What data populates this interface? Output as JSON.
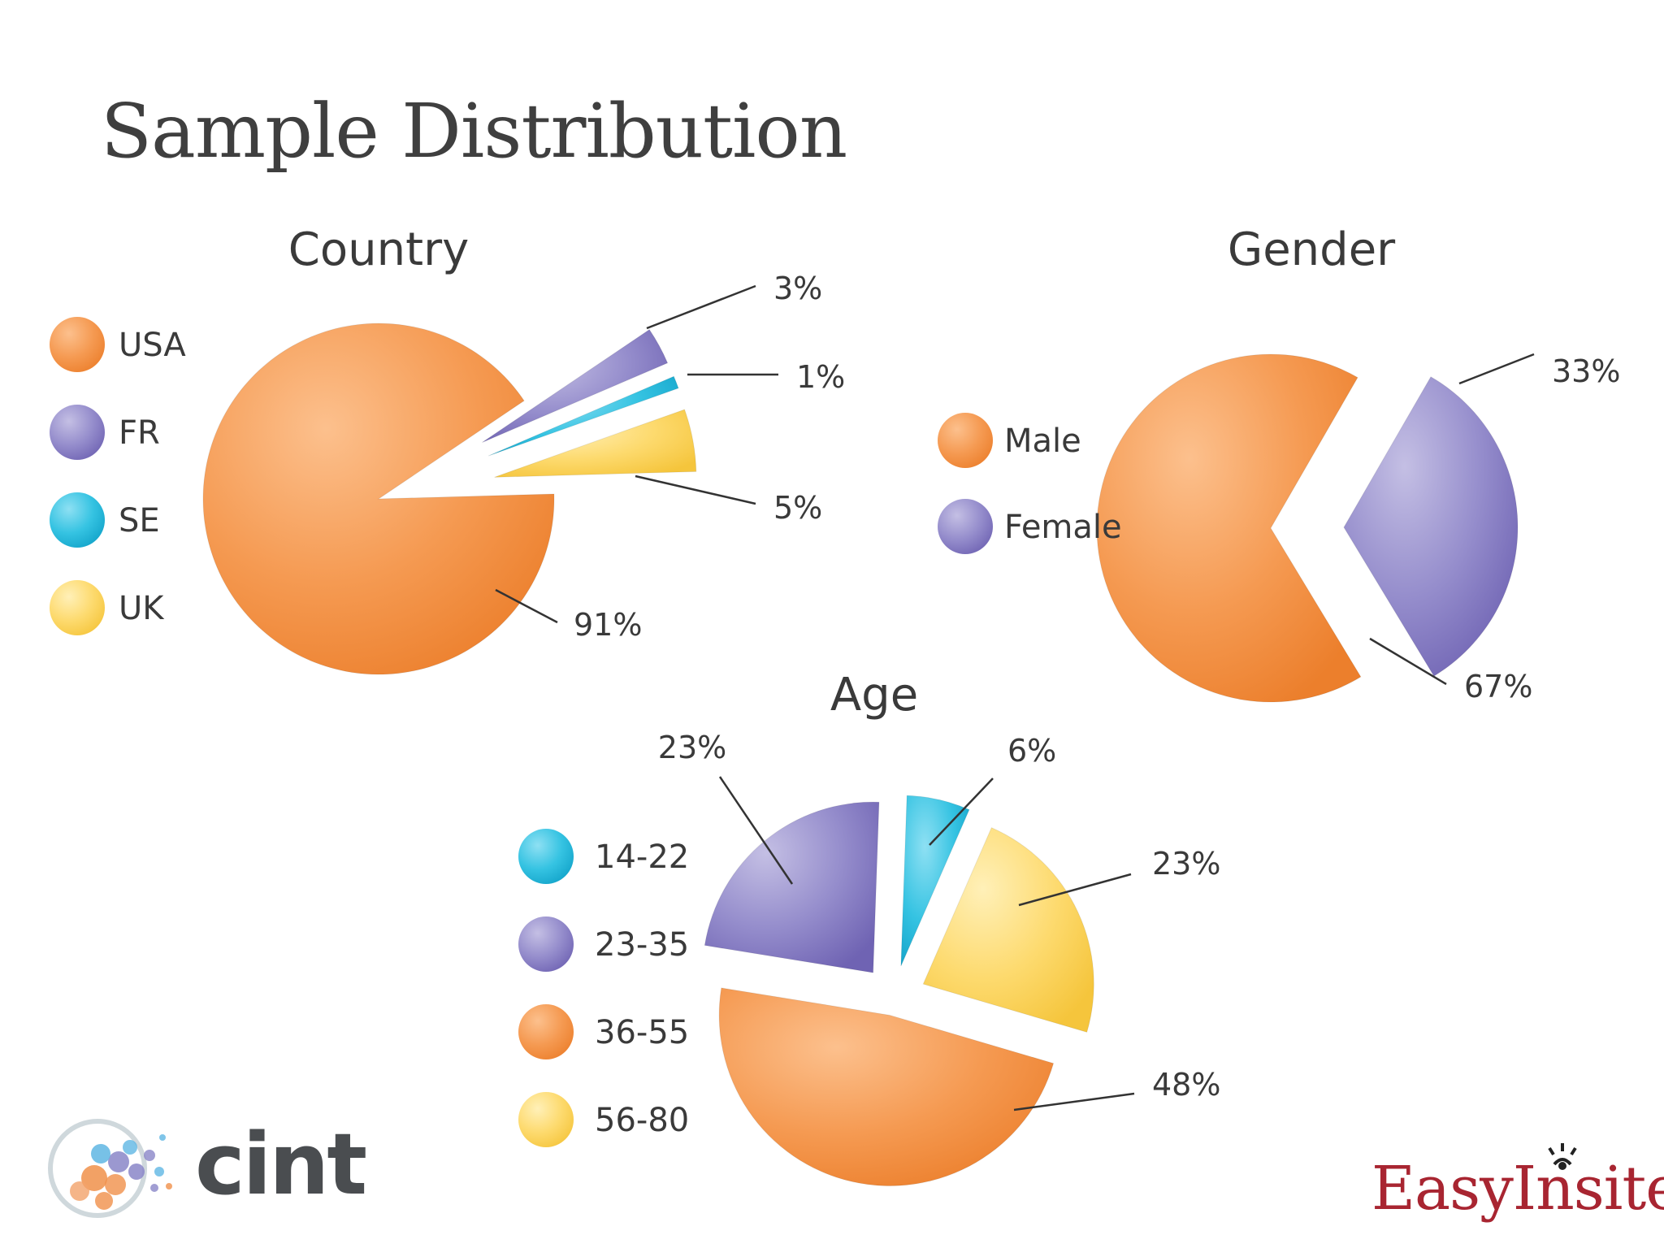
{
  "slide": {
    "title": "Sample Distribution",
    "logo_left": "cint",
    "logo_right": "EasyInsites"
  },
  "colors": {
    "orange": "#f59a52",
    "purple": "#8f86c8",
    "cyan": "#2dbfe0",
    "yellow": "#fdd868",
    "title_text": "#3f3f3f",
    "easyinsites_red": "#a82531"
  },
  "chart_data": [
    {
      "type": "pie",
      "title": "Country",
      "categories": [
        "USA",
        "FR",
        "SE",
        "UK"
      ],
      "values": [
        91,
        3,
        1,
        5
      ],
      "labels": [
        "91%",
        "3%",
        "1%",
        "5%"
      ],
      "colors": [
        "#f59a52",
        "#8f86c8",
        "#2dbfe0",
        "#fdd868"
      ],
      "legend": "left",
      "exploded": [
        "FR",
        "SE",
        "UK"
      ]
    },
    {
      "type": "pie",
      "title": "Gender",
      "categories": [
        "Male",
        "Female"
      ],
      "values": [
        67,
        33
      ],
      "labels": [
        "67%",
        "33%"
      ],
      "colors": [
        "#f59a52",
        "#8f86c8"
      ],
      "legend": "left",
      "exploded": [
        "Female"
      ]
    },
    {
      "type": "pie",
      "title": "Age",
      "categories": [
        "14-22",
        "23-35",
        "36-55",
        "56-80"
      ],
      "values": [
        6,
        23,
        48,
        23
      ],
      "labels": [
        "6%",
        "23%",
        "48%",
        "23%"
      ],
      "colors": [
        "#2dbfe0",
        "#8f86c8",
        "#f59a52",
        "#fdd868"
      ],
      "legend": "left",
      "exploded": [
        "14-22",
        "23-35",
        "36-55",
        "56-80"
      ]
    }
  ]
}
